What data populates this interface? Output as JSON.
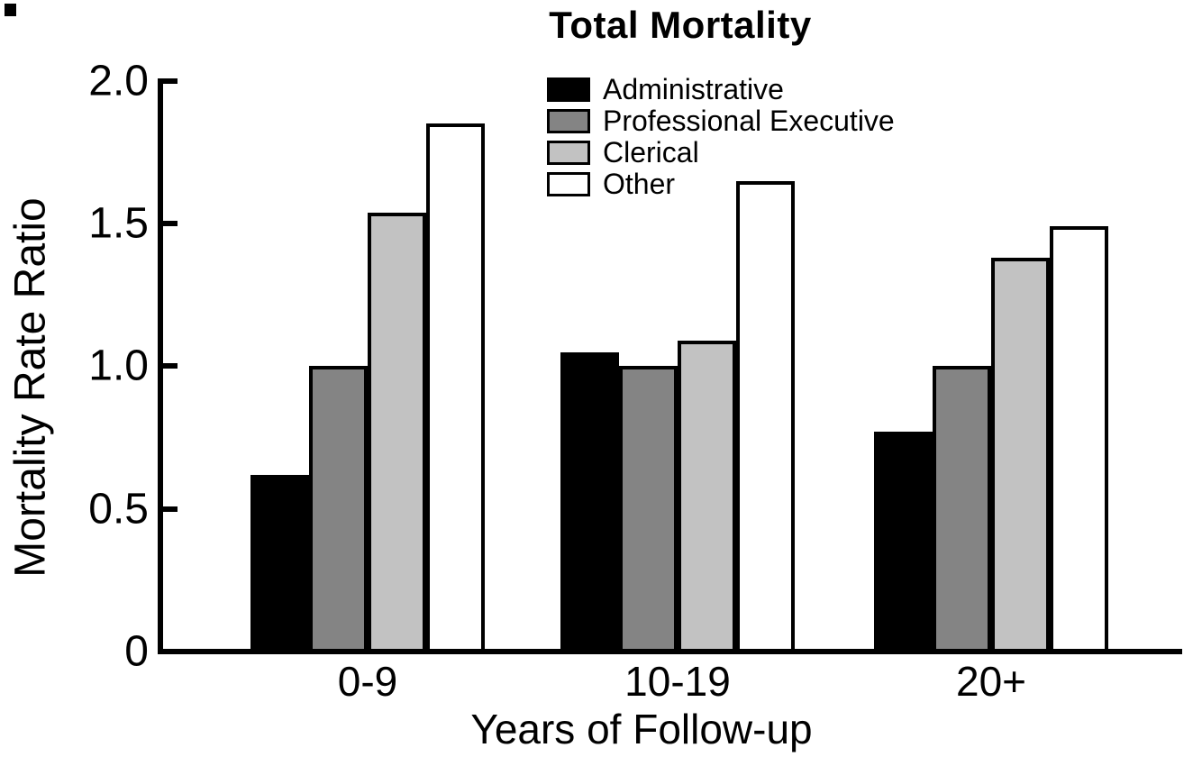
{
  "chart_data": {
    "type": "bar",
    "title": "Total Mortality",
    "xlabel": "Years of Follow-up",
    "ylabel": "Mortality Rate Ratio",
    "categories": [
      "0-9",
      "10-19",
      "20+"
    ],
    "series": [
      {
        "name": "Administrative",
        "color": "#000000",
        "values": [
          0.62,
          1.05,
          0.77
        ]
      },
      {
        "name": "Professional Executive",
        "color": "#848484",
        "values": [
          1.0,
          1.0,
          1.0
        ]
      },
      {
        "name": "Clerical",
        "color": "#c2c2c2",
        "values": [
          1.54,
          1.09,
          1.38
        ]
      },
      {
        "name": "Other",
        "color": "#ffffff",
        "values": [
          1.85,
          1.65,
          1.49
        ]
      }
    ],
    "ylim": [
      0,
      2.0
    ],
    "yticks": [
      0,
      0.5,
      1.0,
      1.5,
      2.0
    ],
    "ytick_labels": [
      "0",
      "0.5",
      "1.0",
      "1.5",
      "2.0"
    ],
    "grid": false,
    "legend_position": "top-center-inside",
    "bar_outline_color": "#000000",
    "axis_color": "#000000"
  }
}
